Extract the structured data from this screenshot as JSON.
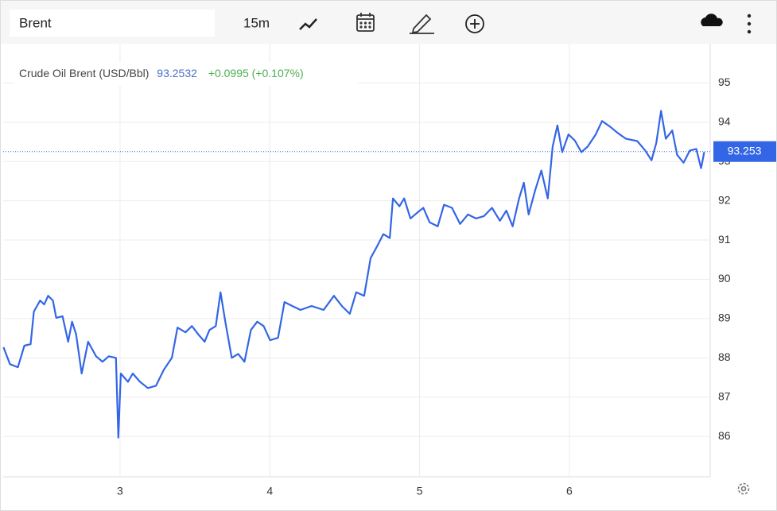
{
  "toolbar": {
    "symbol": "Brent",
    "interval": "15m"
  },
  "chart_data": {
    "type": "line",
    "title": "Crude Oil Brent (USD/Bbl)",
    "change": "+0.0995 (+0.107%)",
    "last_price": {
      "value": 93.2532,
      "label": "93.253"
    },
    "x": [
      2.222,
      2.265,
      2.318,
      2.361,
      2.403,
      2.425,
      2.467,
      2.494,
      2.52,
      2.552,
      2.574,
      2.616,
      2.654,
      2.68,
      2.707,
      2.744,
      2.787,
      2.84,
      2.883,
      2.925,
      2.973,
      2.989,
      3.005,
      3.053,
      3.085,
      3.133,
      3.186,
      3.24,
      3.293,
      3.346,
      3.384,
      3.437,
      3.48,
      3.522,
      3.565,
      3.597,
      3.639,
      3.671,
      3.703,
      3.746,
      3.789,
      3.831,
      3.874,
      3.916,
      3.959,
      4.002,
      4.055,
      4.098,
      4.151,
      4.204,
      4.279,
      4.359,
      4.428,
      4.481,
      4.534,
      4.577,
      4.63,
      4.673,
      4.716,
      4.758,
      4.801,
      4.822,
      4.865,
      4.897,
      4.939,
      4.982,
      5.025,
      5.067,
      5.121,
      5.163,
      5.216,
      5.27,
      5.323,
      5.376,
      5.43,
      5.483,
      5.536,
      5.579,
      5.621,
      5.664,
      5.696,
      5.728,
      5.771,
      5.813,
      5.856,
      5.888,
      5.92,
      5.952,
      5.994,
      6.037,
      6.08,
      6.122,
      6.176,
      6.218,
      6.271,
      6.325,
      6.378,
      6.453,
      6.506,
      6.548,
      6.58,
      6.612,
      6.644,
      6.687,
      6.719,
      6.762,
      6.804,
      6.847,
      6.879,
      6.9
    ],
    "series": [
      {
        "name": "Crude Oil Brent",
        "color": "#3366e6",
        "values": [
          88.27,
          87.84,
          87.76,
          88.31,
          88.35,
          89.18,
          89.46,
          89.36,
          89.58,
          89.46,
          89.02,
          89.06,
          88.41,
          88.92,
          88.6,
          87.6,
          88.41,
          88.04,
          87.9,
          88.04,
          88.0,
          85.97,
          87.6,
          87.39,
          87.6,
          87.39,
          87.23,
          87.29,
          87.7,
          88.0,
          88.77,
          88.65,
          88.81,
          88.6,
          88.41,
          88.71,
          88.81,
          89.67,
          88.92,
          88.0,
          88.1,
          87.9,
          88.71,
          88.92,
          88.81,
          88.45,
          88.51,
          89.42,
          89.32,
          89.22,
          89.32,
          89.22,
          89.58,
          89.32,
          89.12,
          89.67,
          89.58,
          90.54,
          90.84,
          91.15,
          91.05,
          92.06,
          91.86,
          92.06,
          91.55,
          91.69,
          91.82,
          91.45,
          91.35,
          91.9,
          91.82,
          91.41,
          91.65,
          91.55,
          91.61,
          91.82,
          91.49,
          91.75,
          91.35,
          92.06,
          92.46,
          91.65,
          92.26,
          92.77,
          92.06,
          93.38,
          93.92,
          93.24,
          93.69,
          93.53,
          93.24,
          93.38,
          93.69,
          94.03,
          93.89,
          93.72,
          93.58,
          93.52,
          93.28,
          93.03,
          93.47,
          94.29,
          93.58,
          93.79,
          93.17,
          92.97,
          93.28,
          93.32,
          92.83,
          93.24
        ]
      }
    ],
    "xlim": [
      2.22,
      6.94
    ],
    "xticks": [
      3,
      4,
      5,
      6
    ],
    "ylim": [
      84.97,
      96.0
    ],
    "yticks": [
      86,
      87,
      88,
      89,
      90,
      91,
      92,
      93,
      94,
      95
    ],
    "grid": true
  }
}
